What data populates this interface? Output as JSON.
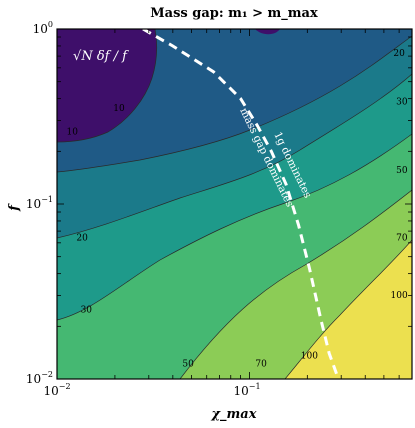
{
  "chart_data": {
    "type": "contour",
    "title": "Mass gap: m₁ > m_max",
    "xlabel": "χ_max",
    "ylabel": "f",
    "x_scale": "log",
    "y_scale": "log",
    "xlim": [
      0.01,
      0.7
    ],
    "ylim": [
      0.01,
      1
    ],
    "x_ticks": [
      {
        "base": "10",
        "exp": "−2"
      },
      {
        "base": "10",
        "exp": "−1"
      }
    ],
    "y_ticks": [
      {
        "base": "10",
        "exp": "0"
      },
      {
        "base": "10",
        "exp": "−1"
      },
      {
        "base": "10",
        "exp": "−2"
      }
    ],
    "colorbar": false,
    "colormap": "viridis",
    "quantity_label": "√N δf / f",
    "contour_levels": [
      10,
      20,
      30,
      50,
      70,
      100
    ],
    "contour_labels": [
      {
        "text": "20",
        "x": 0.6,
        "y": 0.7
      },
      {
        "text": "30",
        "x": 0.62,
        "y": 0.37
      },
      {
        "text": "50",
        "x": 0.62,
        "y": 0.15
      },
      {
        "text": "70",
        "x": 0.62,
        "y": 0.062
      },
      {
        "text": "100",
        "x": 0.6,
        "y": 0.029
      },
      {
        "text": "10",
        "x": 0.021,
        "y": 0.34
      },
      {
        "text": "10",
        "x": 0.012,
        "y": 0.25
      },
      {
        "text": "20",
        "x": 0.0135,
        "y": 0.062
      },
      {
        "text": "30",
        "x": 0.0142,
        "y": 0.024
      },
      {
        "text": "50",
        "x": 0.048,
        "y": 0.0118
      },
      {
        "text": "70",
        "x": 0.115,
        "y": 0.0118
      },
      {
        "text": "100",
        "x": 0.205,
        "y": 0.0131
      }
    ],
    "boundary_curve": {
      "style": "dashed",
      "color": "#ffffff",
      "points": [
        [
          0.028,
          1.0
        ],
        [
          0.04,
          0.8
        ],
        [
          0.065,
          0.57
        ],
        [
          0.09,
          0.4
        ],
        [
          0.11,
          0.28
        ],
        [
          0.13,
          0.2
        ],
        [
          0.155,
          0.13
        ],
        [
          0.18,
          0.076
        ],
        [
          0.205,
          0.043
        ],
        [
          0.235,
          0.022
        ],
        [
          0.26,
          0.014
        ],
        [
          0.29,
          0.01
        ]
      ]
    },
    "annotations": [
      {
        "text": "1g dominates",
        "rotation": "about 64° clockwise, upper right of dashed line"
      },
      {
        "text": "mass gap dominates",
        "rotation": "about 64° clockwise, left of dashed line"
      }
    ],
    "colors": {
      "band_lt10": "#3e0f6a",
      "band_10_20": "#1f5a86",
      "band_20_30": "#1b7a8a",
      "band_30_50": "#1e9a8a",
      "band_50_70": "#45b872",
      "band_70_100": "#8ccc56",
      "band_gt100": "#ece04f"
    }
  }
}
